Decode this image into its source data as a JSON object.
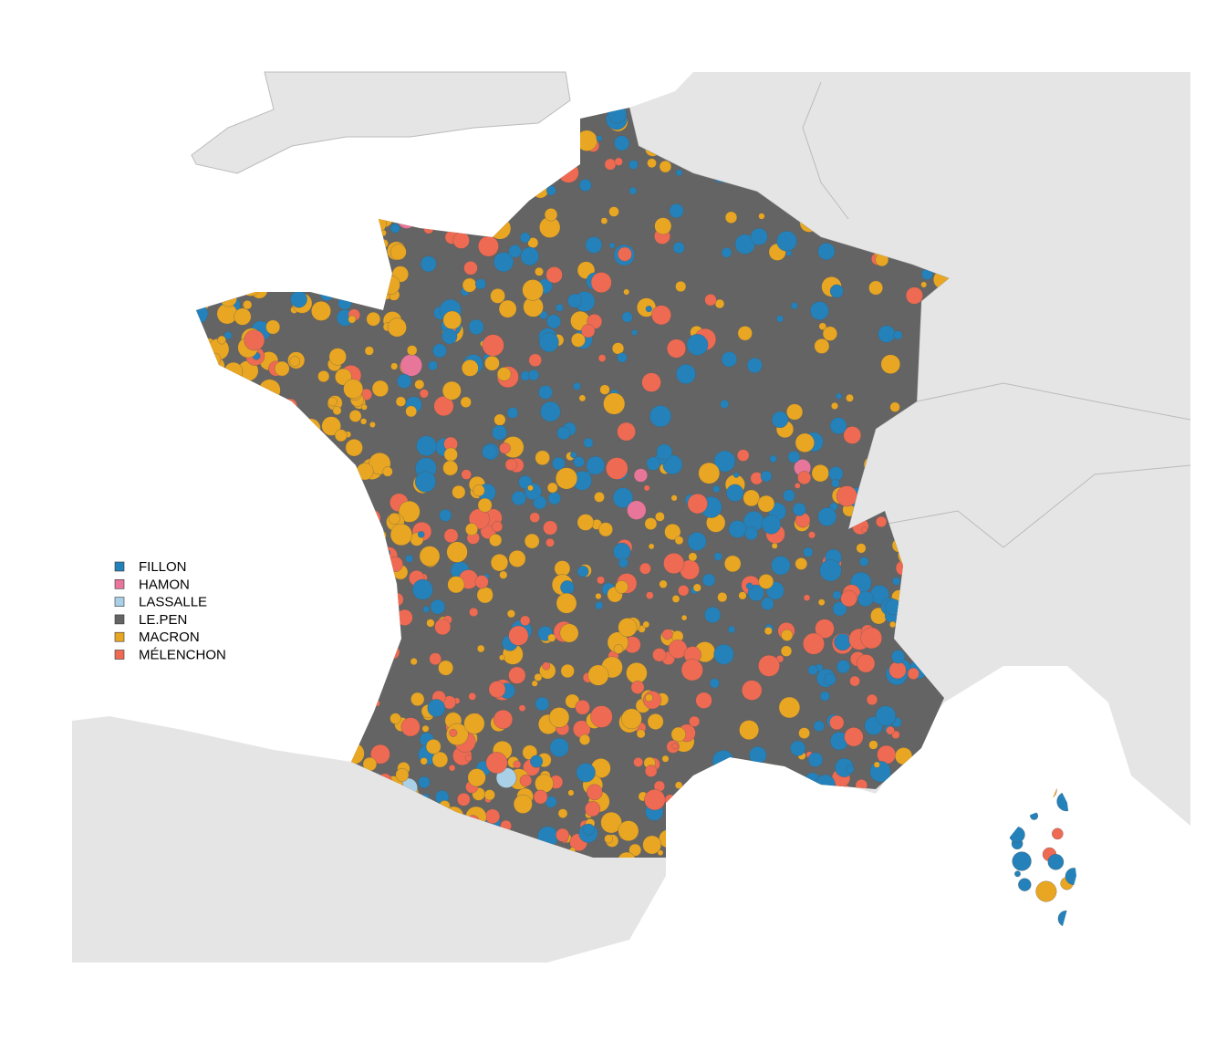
{
  "legend": {
    "items": [
      {
        "label": "FILLON",
        "color": "#2481b9"
      },
      {
        "label": "HAMON",
        "color": "#e8769a"
      },
      {
        "label": "LASSALLE",
        "color": "#a9d0e6"
      },
      {
        "label": "LE.PEN",
        "color": "#646464"
      },
      {
        "label": "MACRON",
        "color": "#e8a623"
      },
      {
        "label": "MÉLENCHON",
        "color": "#ee6a52"
      }
    ]
  }
}
